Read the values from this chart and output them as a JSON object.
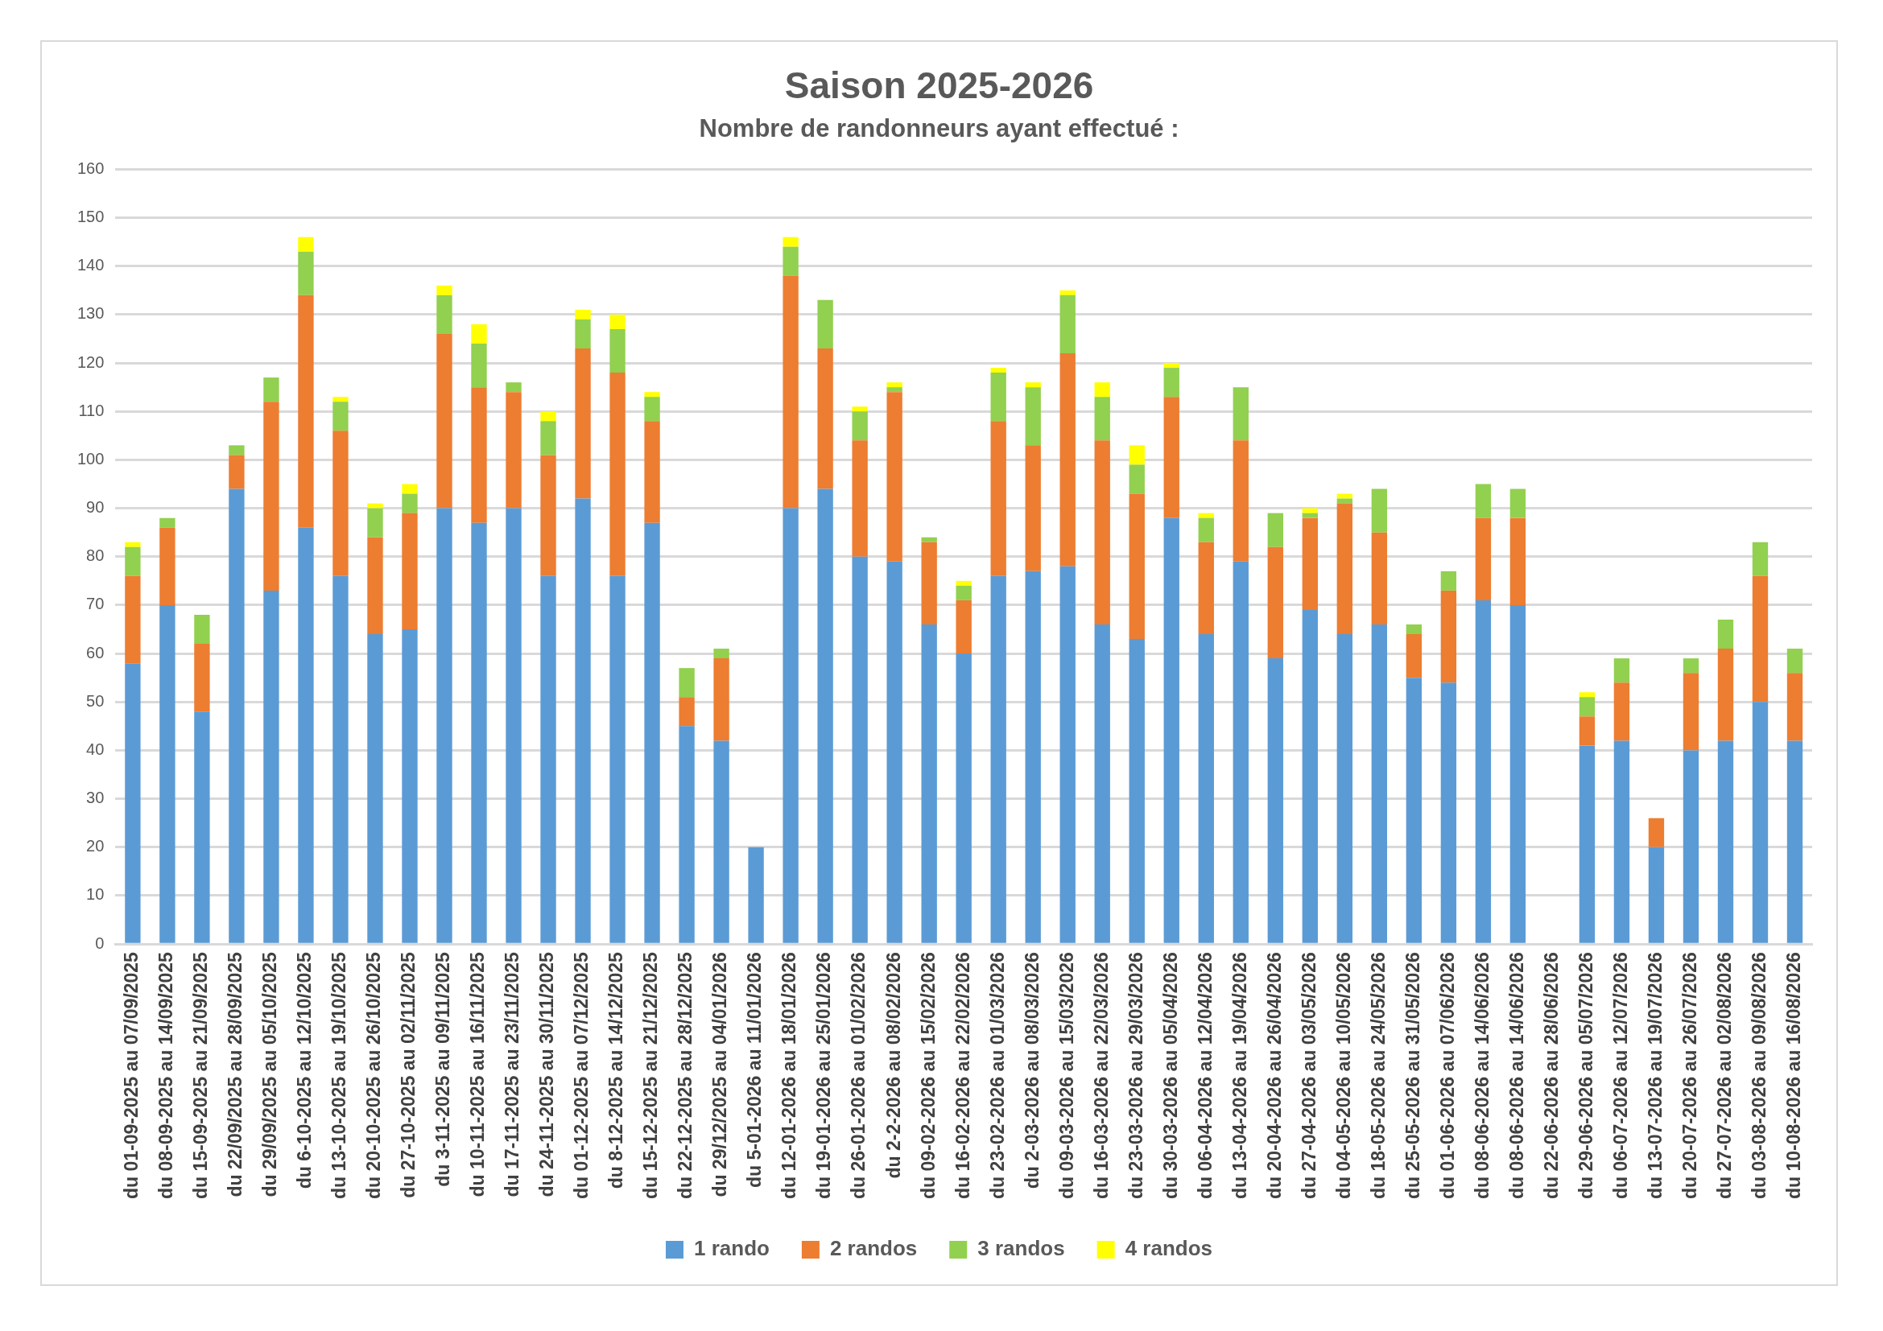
{
  "chart_data": {
    "type": "bar",
    "title": "Saison 2025-2026",
    "subtitle": "Nombre de randonneurs ayant effectué :",
    "stacked": true,
    "grid": "y",
    "legend": "bottom",
    "ylim": [
      0,
      160
    ],
    "yticks": [
      0,
      10,
      20,
      30,
      40,
      50,
      60,
      70,
      80,
      90,
      100,
      110,
      120,
      130,
      140,
      150,
      160
    ],
    "categories": [
      "du 01-09-2025 au 07/09/2025",
      "du 08-09-2025 au 14/09/2025",
      "du 15-09-2025 au 21/09/2025",
      "du 22/09/2025 au 28/09/2025",
      "du 29/09/2025 au 05/10/2025",
      "du 6-10-2025 au 12/10/2025",
      "du 13-10-2025 au 19/10/2025",
      "du 20-10-2025 au 26/10/2025",
      "du 27-10-2025 au 02/11/2025",
      "du 3-11-2025 au 09/11/2025",
      "du 10-11-2025 au 16/11/2025",
      "du 17-11-2025 au 23/11/2025",
      "du 24-11-2025 au 30/11/2025",
      "du 01-12-2025 au 07/12/2025",
      "du 8-12-2025 au 14/12/2025",
      "du 15-12-2025 au 21/12/2025",
      "du 22-12-2025 au 28/12/2025",
      "du 29/12/2025 au 04/01/2026",
      "du 5-01-2026 au 11/01/2026",
      "du 12-01-2026 au 18/01/2026",
      "du 19-01-2026 au 25/01/2026",
      "du 26-01-2026 au 01/02/2026",
      "du 2-2-2026 au 08/02/2026",
      "du 09-02-2026 au 15/02/2026",
      "du 16-02-2026 au 22/02/2026",
      "du 23-02-2026 au 01/03/2026",
      "du 2-03-2026 au 08/03/2026",
      "du 09-03-2026 au 15/03/2026",
      "du 16-03-2026 au 22/03/2026",
      "du 23-03-2026 au 29/03/2026",
      "du 30-03-2026 au 05/04/2026",
      "du 06-04-2026 au 12/04/2026",
      "du 13-04-2026 au 19/04/2026",
      "du 20-04-2026 au 26/04/2026",
      "du 27-04-2026 au 03/05/2026",
      "du 04-05-2026 au 10/05/2026",
      "du 18-05-2026 au 24/05/2026",
      "du 25-05-2026 au 31/05/2026",
      "du 01-06-2026 au 07/06/2026",
      "du 08-06-2026 au 14/06/2026",
      "du 08-06-2026 au 14/06/2026",
      "du 22-06-2026 au 28/06/2026",
      "du 29-06-2026 au 05/07/2026",
      "du 06-07-2026 au 12/07/2026",
      "du 13-07-2026 au 19/07/2026",
      "du 20-07-2026 au 26/07/2026",
      "du 27-07-2026 au 02/08/2026",
      "du 03-08-2026 au 09/08/2026",
      "du 10-08-2026 au 16/08/2026"
    ],
    "series": [
      {
        "name": "1 rando",
        "color": "#5b9bd5",
        "values": [
          58,
          70,
          48,
          94,
          73,
          86,
          76,
          64,
          65,
          90,
          87,
          90,
          76,
          92,
          76,
          87,
          45,
          42,
          20,
          90,
          94,
          80,
          79,
          66,
          60,
          76,
          77,
          78,
          66,
          63,
          88,
          64,
          79,
          59,
          69,
          64,
          66,
          55,
          54,
          71,
          70,
          null,
          41,
          42,
          20,
          40,
          42,
          50,
          42
        ]
      },
      {
        "name": "2 randos",
        "color": "#ed7d31",
        "values": [
          18,
          16,
          14,
          7,
          39,
          48,
          30,
          20,
          24,
          36,
          28,
          24,
          25,
          31,
          42,
          21,
          6,
          17,
          0,
          48,
          29,
          24,
          35,
          17,
          11,
          32,
          26,
          44,
          38,
          30,
          25,
          19,
          25,
          23,
          19,
          27,
          19,
          9,
          19,
          17,
          18,
          null,
          6,
          12,
          6,
          16,
          19,
          26,
          14
        ]
      },
      {
        "name": "3 randos",
        "color": "#92d050",
        "values": [
          6,
          2,
          6,
          2,
          5,
          9,
          6,
          6,
          4,
          8,
          9,
          2,
          7,
          6,
          9,
          5,
          6,
          2,
          0,
          6,
          10,
          6,
          1,
          1,
          3,
          10,
          12,
          12,
          9,
          6,
          6,
          5,
          11,
          7,
          1,
          1,
          9,
          2,
          4,
          7,
          6,
          null,
          4,
          5,
          0,
          3,
          6,
          7,
          5
        ]
      },
      {
        "name": "4 randos",
        "color": "#ffff00",
        "values": [
          1,
          0,
          0,
          0,
          0,
          3,
          1,
          1,
          2,
          2,
          4,
          0,
          2,
          2,
          3,
          1,
          0,
          0,
          0,
          2,
          0,
          1,
          1,
          0,
          1,
          1,
          1,
          1,
          3,
          4,
          1,
          1,
          0,
          0,
          1,
          1,
          0,
          0,
          0,
          0,
          0,
          null,
          1,
          0,
          0,
          0,
          0,
          0,
          0
        ]
      }
    ]
  }
}
